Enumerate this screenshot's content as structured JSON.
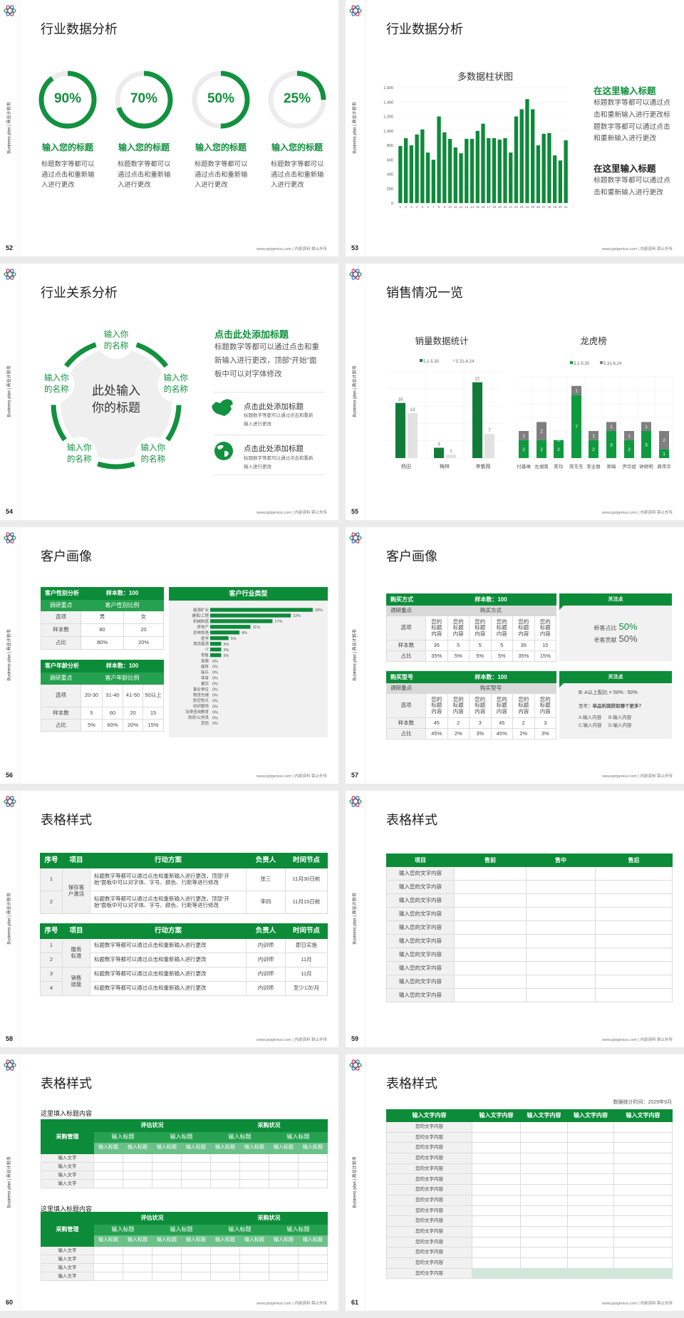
{
  "common": {
    "side_text": "Business plan | 商业计划书",
    "footer": "www.pptgenius.com | 内部资料 禁止外传",
    "brand_color": "#12913f",
    "logo_icon": "atom-logo-icon"
  },
  "slides": [
    {
      "page": "52",
      "title": "行业数据分析",
      "rings": [
        {
          "percent": 90,
          "label": "90%",
          "heading": "输入您的标题",
          "body": "标题数字等都可以通过点击和重新输入进行更改"
        },
        {
          "percent": 70,
          "label": "70%",
          "heading": "输入您的标题",
          "body": "标题数字等都可以通过点击和重新输入进行更改"
        },
        {
          "percent": 50,
          "label": "50%",
          "heading": "输入您的标题",
          "body": "标题数字等都可以通过点击和重新输入进行更改"
        },
        {
          "percent": 25,
          "label": "25%",
          "heading": "输入您的标题",
          "body": "标题数字等都可以通过点击和重新输入进行更改"
        }
      ]
    },
    {
      "page": "53",
      "title": "行业数据分析",
      "side": [
        {
          "heading": "在这里输入标题",
          "body": "标题数字等都可以通过点击和重新输入进行更改标题数字等都可以通过点击和重新输入进行更改"
        },
        {
          "heading": "在这里输入标题",
          "body": "标题数字等都可以通过点击和重新输入进行更改"
        }
      ]
    },
    {
      "page": "54",
      "title": "行业关系分析",
      "center": "此处输入你的标题",
      "nodes": [
        "输入你的名称",
        "输入你的名称",
        "输入你的名称",
        "输入你的名称",
        "输入你的名称"
      ],
      "heading": "点击此处添加标题",
      "body": "标题数字等都可以通过点击和重新输入进行更改，顶部“开始”面板中可以对字体修改",
      "items": [
        {
          "icon": "china-map-icon",
          "title": "点击此处添加标题",
          "body": "标题数字等都可以通过点击和重新输入进行更改"
        },
        {
          "icon": "globe-icon",
          "title": "点击此处添加标题",
          "body": "标题数字等都可以通过点击和重新输入进行更改"
        }
      ]
    },
    {
      "page": "55",
      "title": "销售情况一览"
    },
    {
      "page": "56",
      "title": "客户画像",
      "gender_table": {
        "header": [
          "客户性别分析",
          "样本数：100"
        ],
        "sub": [
          "调研重点",
          "客户性别比例"
        ],
        "rows": [
          [
            "选项",
            "男",
            "女"
          ],
          [
            "样本数",
            "80",
            "20"
          ],
          [
            "占比",
            "80%",
            "20%"
          ]
        ]
      },
      "age_table": {
        "header": [
          "客户年龄分析",
          "样本数：100"
        ],
        "sub": [
          "调研重点",
          "客户年龄比例"
        ],
        "rows": [
          [
            "选项",
            "20-30",
            "31-40",
            "41-50",
            "50以上"
          ],
          [
            "样本数",
            "5",
            "60",
            "20",
            "15"
          ],
          [
            "占比",
            "5%",
            "60%",
            "20%",
            "15%"
          ]
        ]
      }
    },
    {
      "page": "57",
      "title": "客户画像",
      "tables": [
        {
          "header": [
            "购买方式",
            "样本数：100"
          ],
          "sub": [
            "调研重点",
            "购买方式"
          ],
          "rows": [
            [
              "选项",
              "您的标题内容",
              "您的标题内容",
              "您的标题内容",
              "您的标题内容",
              "您的标题内容",
              "您的标题内容"
            ],
            [
              "样本数",
              "35",
              "5",
              "5",
              "5",
              "35",
              "15"
            ],
            [
              "占比",
              "35%",
              "5%",
              "5%",
              "5%",
              "35%",
              "15%"
            ]
          ]
        },
        {
          "header": [
            "购买型号",
            "样本数：100"
          ],
          "sub": [
            "调研重点",
            "购买型号"
          ],
          "rows": [
            [
              "选项",
              "您的标题内容",
              "您的标题内容",
              "您的标题内容",
              "您的标题内容",
              "您的标题内容",
              "您的标题内容"
            ],
            [
              "样本数",
              "45",
              "2",
              "3",
              "45",
              "2",
              "3"
            ],
            [
              "占比",
              "45%",
              "2%",
              "3%",
              "45%",
              "2%",
              "3%"
            ]
          ]
        }
      ],
      "panels": [
        {
          "title": "关注点",
          "lines": [
            {
              "label": "新客占比",
              "value": "50%"
            },
            {
              "label": "老客贡献",
              "value": "50%"
            }
          ]
        },
        {
          "title": "关注点",
          "ratio": "B: A以上配比 = 50% : 50%",
          "question_label": "思考：",
          "question": "单品利润获取哪个更多？",
          "options": [
            "A.输入内容",
            "B.输入内容",
            "C.输入内容",
            "D.输入内容"
          ]
        }
      ]
    },
    {
      "page": "58",
      "title": "表格样式",
      "table1": {
        "headers": [
          "序号",
          "项目",
          "行动方案",
          "负责人",
          "时间节点"
        ],
        "project": "保存客户激活",
        "rows": [
          [
            "1",
            "标题数字等都可以通过点击和重新输入进行更改，顶部“开始”面板中可以对字体、字号、颜色、行距等进行修改",
            "张三",
            "11月30日前"
          ],
          [
            "2",
            "标题数字等都可以通过点击和重新输入进行更改，顶部“开始”面板中可以对字体、字号、颜色、行距等进行修改",
            "李四",
            "11月15日前"
          ]
        ]
      },
      "table2": {
        "headers": [
          "序号",
          "项目",
          "行动方案",
          "负责人",
          "时间节点"
        ],
        "projects": [
          "服务标准",
          "销售技能"
        ],
        "rows": [
          [
            "1",
            "标题数字等都可以通过点击和重新输入进行更改",
            "内训师",
            "即日实施"
          ],
          [
            "2",
            "标题数字等都可以通过点击和重新输入进行更改",
            "内训师",
            "11月"
          ],
          [
            "3",
            "标题数字等都可以通过点击和重新输入进行更改",
            "内训师",
            "11月"
          ],
          [
            "4",
            "标题数字等都可以通过点击和重新输入进行更改",
            "内训师",
            "至少1次/月"
          ]
        ]
      }
    },
    {
      "page": "59",
      "title": "表格样式",
      "headers": [
        "项目",
        "售前",
        "售中",
        "售后"
      ],
      "rows": [
        "输入您的文字内容",
        "输入您的文字内容",
        "输入您的文字内容",
        "输入您的文字内容",
        "输入您的文字内容",
        "输入您的文字内容",
        "输入您的文字内容",
        "输入您的文字内容",
        "输入您的文字内容",
        "输入您的文字内容"
      ]
    },
    {
      "page": "60",
      "title": "表格样式",
      "sections": [
        {
          "subtitle": "这里填入标题内容",
          "corner": "采购管理",
          "groups": [
            "评估状况",
            "采购状况"
          ],
          "subgroups": [
            "输入标题",
            "输入标题",
            "输入标题",
            "输入标题"
          ],
          "cols": [
            "输入标题",
            "输入标题",
            "输入标题",
            "输入标题",
            "输入标题",
            "输入标题",
            "输入标题",
            "输入标题"
          ],
          "rows": [
            "输入文字",
            "输入文字",
            "输入文字",
            "输入文字"
          ]
        },
        {
          "subtitle": "这里填入标题内容",
          "corner": "采购管理",
          "groups": [
            "评估状况",
            "采购状况"
          ],
          "subgroups": [
            "输入标题",
            "输入标题",
            "输入标题",
            "输入标题"
          ],
          "cols": [
            "输入标题",
            "输入标题",
            "输入标题",
            "输入标题",
            "输入标题",
            "输入标题",
            "输入标题",
            "输入标题"
          ],
          "rows": [
            "输入文字",
            "输入文字",
            "输入文字",
            "输入文字"
          ]
        }
      ]
    },
    {
      "page": "61",
      "title": "表格样式",
      "stat_time": "数据统计时间：2029年9月",
      "headers": [
        "输入文字内容",
        "输入文字内容",
        "输入文字内容",
        "输入文字内容",
        "输入文字内容"
      ],
      "rows": [
        "您的文字内容",
        "您的文字内容",
        "您的文字内容",
        "您的文字内容",
        "您的文字内容",
        "您的文字内容",
        "您的文字内容",
        "您的文字内容",
        "您的文字内容",
        "您的文字内容",
        "您的文字内容",
        "您的文字内容",
        "您的文字内容",
        "您的文字内容",
        "您的文字内容"
      ]
    }
  ],
  "chart_data": [
    {
      "type": "bar",
      "title": "多数据柱状图",
      "categories": [
        "1",
        "2",
        "3",
        "4",
        "5",
        "6",
        "7",
        "8",
        "9",
        "10",
        "11",
        "12",
        "13",
        "14",
        "15",
        "16",
        "17",
        "18",
        "19",
        "20",
        "21",
        "22",
        "23",
        "24",
        "25",
        "26",
        "27",
        "28",
        "29",
        "30",
        "31"
      ],
      "values": [
        790,
        900,
        800,
        950,
        1020,
        700,
        600,
        1200,
        980,
        890,
        770,
        690,
        890,
        890,
        1000,
        1100,
        900,
        900,
        880,
        900,
        700,
        1200,
        1300,
        1440,
        1300,
        800,
        960,
        970,
        660,
        590,
        870
      ],
      "ylim": [
        0,
        1600
      ],
      "ytick_labels": [
        "0",
        "200",
        "400",
        "600",
        "800",
        "1,000",
        "1,200",
        "1,400",
        "1,600"
      ],
      "grid": true,
      "color": "#0d8a3a"
    },
    {
      "type": "bar",
      "title": "销量数据统计",
      "categories": [
        "杨田",
        "梅林",
        "李紫薇"
      ],
      "legend": "top",
      "series": [
        {
          "name": "5.1-5.30",
          "values": [
            16,
            3,
            22
          ],
          "color": "#107c38"
        },
        {
          "name": "5.31-6.24",
          "values": [
            13,
            1,
            7
          ],
          "color": "#e2e2e2"
        }
      ],
      "ylim": [
        0,
        25
      ],
      "grid": true
    },
    {
      "type": "stacked-bar",
      "title": "龙虎榜",
      "categories": [
        "付鑫琳",
        "左湘南",
        "陈玲",
        "陈东东",
        "李业丽",
        "郑梅",
        "尹华斌",
        "钟继明",
        "周伟华"
      ],
      "legend": "top",
      "series": [
        {
          "name": "5.1-5.30",
          "values": [
            2,
            2,
            2,
            7,
            2,
            3,
            2,
            3,
            1
          ],
          "color": "#109a40"
        },
        {
          "name": "5.31-6.24",
          "values": [
            1,
            2,
            0,
            1,
            1,
            1,
            1,
            1,
            2
          ],
          "color": "#7f7f7f"
        }
      ],
      "ylim": [
        0,
        9
      ],
      "grid": true
    },
    {
      "type": "bar",
      "orientation": "horizontal",
      "title": "客户行业类型",
      "categories": [
        "能源矿业",
        "建筑/工程",
        "机械制造",
        "房地产",
        "农林牧渔",
        "医学",
        "清洁能源",
        "IT",
        "零售",
        "金融",
        "媒体",
        "娱乐",
        "体育",
        "餐饮",
        "事业单位",
        "物流仓储",
        "航空航天",
        "纺织服饰",
        "法律咨询教育",
        "政府/公务员",
        "其他"
      ],
      "values": [
        28,
        22,
        17,
        11,
        8,
        5,
        3,
        3,
        3,
        0,
        0,
        0,
        0,
        0,
        0,
        0,
        0,
        0,
        0,
        0,
        0
      ],
      "labels": [
        "28%",
        "22%",
        "17%",
        "11%",
        "8%",
        "5%",
        "3%",
        "3%",
        "3%",
        "0%",
        "0%",
        "0%",
        "0%",
        "0%",
        "0%",
        "0%",
        "0%",
        "0%",
        "0%",
        "0%",
        "0%"
      ],
      "color": "#0d8a3a"
    }
  ]
}
